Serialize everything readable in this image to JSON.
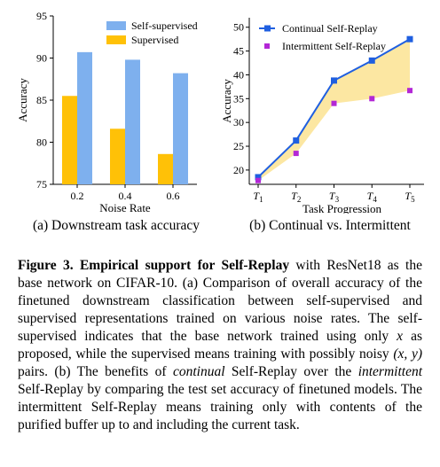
{
  "chart_data": [
    {
      "type": "bar",
      "xlabel": "Noise Rate",
      "ylabel": "Accuracy",
      "categories": [
        "0.2",
        "0.4",
        "0.6"
      ],
      "ylim": [
        75,
        95
      ],
      "yticks": [
        "75",
        "80",
        "85",
        "90",
        "95"
      ],
      "series": [
        {
          "name": "Self-supervised",
          "color": "#7EB0EE",
          "values": [
            90.7,
            89.8,
            88.2
          ]
        },
        {
          "name": "Supervised",
          "color": "#FFC107",
          "values": [
            85.5,
            81.6,
            78.6
          ]
        }
      ],
      "legend_position": "top-right",
      "caption": "(a) Downstream task accuracy"
    },
    {
      "type": "line",
      "xlabel": "Task Progression",
      "ylabel": "Accuracy",
      "categories": [
        "T1",
        "T2",
        "T3",
        "T4",
        "T5"
      ],
      "ylim": [
        17,
        52
      ],
      "yticks": [
        "20",
        "25",
        "30",
        "35",
        "40",
        "45",
        "50"
      ],
      "series": [
        {
          "name": "Continual Self-Replay",
          "color": "#1f5fe0",
          "style": "line+square",
          "values": [
            18.5,
            26.2,
            38.8,
            43.0,
            47.5
          ]
        },
        {
          "name": "Intermittent Self-Replay",
          "color": "#b327d6",
          "style": "square",
          "values": [
            17.8,
            23.5,
            34.0,
            35.0,
            36.7
          ]
        }
      ],
      "fill_between_color": "#FCE7A2",
      "legend_position": "top-right",
      "caption": "(b) Continual vs. Intermittent"
    }
  ],
  "caption": {
    "label": "Figure 3.",
    "title": "Empirical support for Self-Replay",
    "p1": " with ResNet18 as the base network on CIFAR-10. (a) Comparison of overall accuracy of the finetuned downstream classification between self-supervised and supervised representations trained on various noise rates. The self-supervised indicates that the base network trained using only ",
    "var_x": "x",
    "p2": " as proposed, while the supervised means training with possibly noisy ",
    "var_xy": "(x, y)",
    "p3": " pairs. (b) The benefits of ",
    "em1": "continual",
    "p4": " Self-Replay over the ",
    "em2": "intermittent",
    "p5": " Self-Replay by comparing the test set accuracy of finetuned models. The intermittent Self-Replay means training only with contents of the purified buffer up to and including the current task."
  }
}
